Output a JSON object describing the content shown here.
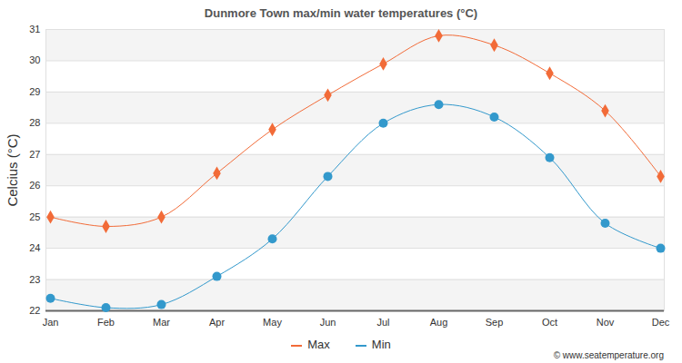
{
  "chart_data": {
    "type": "line",
    "title": "Dunmore Town max/min water temperatures (°C)",
    "y_label": "Celcius (°C)",
    "caption": "© www.seatemperature.org",
    "categories": [
      "Jan",
      "Feb",
      "Mar",
      "Apr",
      "May",
      "Jun",
      "Jul",
      "Aug",
      "Sep",
      "Oct",
      "Nov",
      "Dec"
    ],
    "series": [
      {
        "name": "Max",
        "color": "#f26b38",
        "marker": "diamond",
        "values": [
          25.0,
          24.7,
          25.0,
          26.4,
          27.8,
          28.9,
          29.9,
          30.8,
          30.5,
          29.6,
          28.4,
          26.3
        ]
      },
      {
        "name": "Min",
        "color": "#3399cc",
        "marker": "circle",
        "values": [
          22.4,
          22.1,
          22.2,
          23.1,
          24.3,
          26.3,
          28.0,
          28.6,
          28.2,
          26.9,
          24.8,
          24.0
        ]
      }
    ],
    "ylim": [
      22,
      31
    ],
    "yticks": [
      22,
      23,
      24,
      25,
      26,
      27,
      28,
      29,
      30,
      31
    ],
    "grid": true,
    "legend": "bottom"
  }
}
